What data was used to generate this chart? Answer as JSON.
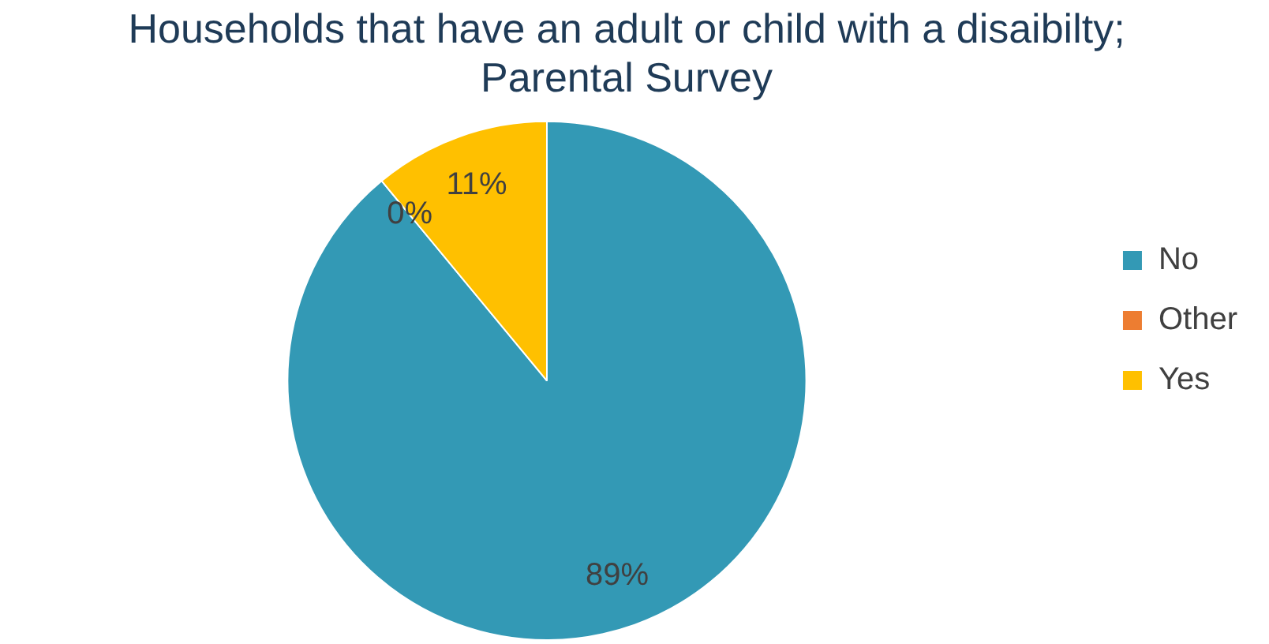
{
  "chart_data": {
    "type": "pie",
    "title": "Households that have an adult or child with a disaibilty; Parental Survey",
    "categories": [
      "No",
      "Other",
      "Yes"
    ],
    "values": [
      89,
      0,
      11
    ],
    "colors": [
      "#3399b5",
      "#ed7d31",
      "#ffc000"
    ],
    "value_labels": [
      "89%",
      "0%",
      "11%"
    ],
    "legend": "right"
  }
}
